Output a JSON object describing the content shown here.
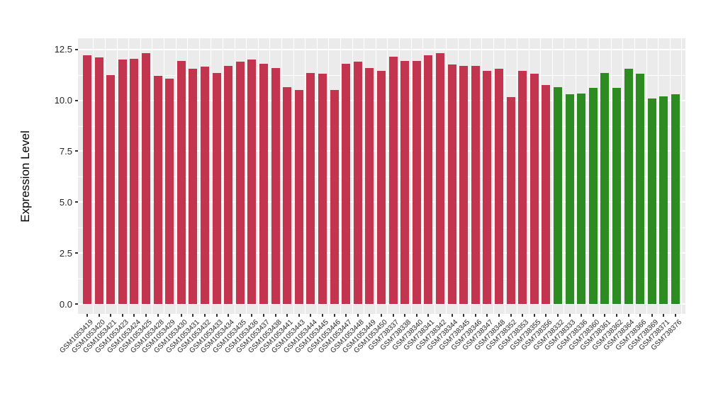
{
  "figure": {
    "background": "#FFFFFF",
    "panel_background": "#EBEBEB",
    "gridline_color": "#FFFFFF",
    "tick_mark_color": "#333333",
    "axis_text_color": "#262626"
  },
  "y_axis": {
    "title": "Expression Level",
    "tick_labels": [
      "0.0",
      "2.5",
      "5.0",
      "7.5",
      "10.0",
      "12.5"
    ],
    "tick_values": [
      0,
      2.5,
      5,
      7.5,
      10,
      12.5
    ],
    "minor_gridline_values": [
      1.25,
      3.75,
      6.25,
      8.75,
      11.25
    ]
  },
  "chart_data": {
    "type": "bar",
    "title": "",
    "xlabel": "",
    "ylabel": "Expression Level",
    "ylim": [
      0,
      13.05
    ],
    "grid": true,
    "legend": false,
    "group_colors": {
      "red": "#C3344F",
      "green": "#2E8B22"
    },
    "items": [
      {
        "label": "GSM1053419",
        "value": 12.2,
        "group": "red"
      },
      {
        "label": "GSM1053420",
        "value": 12.1,
        "group": "red"
      },
      {
        "label": "GSM1053421",
        "value": 11.25,
        "group": "red"
      },
      {
        "label": "GSM1053423",
        "value": 12.0,
        "group": "red"
      },
      {
        "label": "GSM1053424",
        "value": 12.05,
        "group": "red"
      },
      {
        "label": "GSM1053425",
        "value": 12.3,
        "group": "red"
      },
      {
        "label": "GSM1053428",
        "value": 11.2,
        "group": "red"
      },
      {
        "label": "GSM1053429",
        "value": 11.05,
        "group": "red"
      },
      {
        "label": "GSM1053430",
        "value": 11.95,
        "group": "red"
      },
      {
        "label": "GSM1053431",
        "value": 11.55,
        "group": "red"
      },
      {
        "label": "GSM1053432",
        "value": 11.65,
        "group": "red"
      },
      {
        "label": "GSM1053433",
        "value": 11.35,
        "group": "red"
      },
      {
        "label": "GSM1053434",
        "value": 11.7,
        "group": "red"
      },
      {
        "label": "GSM1053435",
        "value": 11.9,
        "group": "red"
      },
      {
        "label": "GSM1053436",
        "value": 12.0,
        "group": "red"
      },
      {
        "label": "GSM1053437",
        "value": 11.8,
        "group": "red"
      },
      {
        "label": "GSM1053438",
        "value": 11.6,
        "group": "red"
      },
      {
        "label": "GSM1053441",
        "value": 10.65,
        "group": "red"
      },
      {
        "label": "GSM1053443",
        "value": 10.5,
        "group": "red"
      },
      {
        "label": "GSM1053444",
        "value": 11.35,
        "group": "red"
      },
      {
        "label": "GSM1053445",
        "value": 11.3,
        "group": "red"
      },
      {
        "label": "GSM1053446",
        "value": 10.5,
        "group": "red"
      },
      {
        "label": "GSM1053447",
        "value": 11.8,
        "group": "red"
      },
      {
        "label": "GSM1053448",
        "value": 11.9,
        "group": "red"
      },
      {
        "label": "GSM1053449",
        "value": 11.6,
        "group": "red"
      },
      {
        "label": "GSM1053450",
        "value": 11.45,
        "group": "red"
      },
      {
        "label": "GSM738337",
        "value": 12.15,
        "group": "red"
      },
      {
        "label": "GSM738338",
        "value": 11.95,
        "group": "red"
      },
      {
        "label": "GSM738340",
        "value": 11.95,
        "group": "red"
      },
      {
        "label": "GSM738341",
        "value": 12.2,
        "group": "red"
      },
      {
        "label": "GSM738342",
        "value": 12.3,
        "group": "red"
      },
      {
        "label": "GSM738344",
        "value": 11.75,
        "group": "red"
      },
      {
        "label": "GSM738345",
        "value": 11.7,
        "group": "red"
      },
      {
        "label": "GSM738346",
        "value": 11.7,
        "group": "red"
      },
      {
        "label": "GSM738347",
        "value": 11.45,
        "group": "red"
      },
      {
        "label": "GSM738348",
        "value": 11.55,
        "group": "red"
      },
      {
        "label": "GSM738352",
        "value": 10.15,
        "group": "red"
      },
      {
        "label": "GSM738353",
        "value": 11.45,
        "group": "red"
      },
      {
        "label": "GSM738355",
        "value": 11.3,
        "group": "red"
      },
      {
        "label": "GSM738356",
        "value": 10.75,
        "group": "red"
      },
      {
        "label": "GSM738332",
        "value": 10.65,
        "group": "green"
      },
      {
        "label": "GSM738333",
        "value": 10.3,
        "group": "green"
      },
      {
        "label": "GSM738336",
        "value": 10.35,
        "group": "green"
      },
      {
        "label": "GSM738360",
        "value": 10.6,
        "group": "green"
      },
      {
        "label": "GSM738361",
        "value": 11.35,
        "group": "green"
      },
      {
        "label": "GSM738362",
        "value": 10.6,
        "group": "green"
      },
      {
        "label": "GSM738364",
        "value": 11.55,
        "group": "green"
      },
      {
        "label": "GSM738366",
        "value": 11.3,
        "group": "green"
      },
      {
        "label": "GSM738369",
        "value": 10.1,
        "group": "green"
      },
      {
        "label": "GSM738371",
        "value": 10.2,
        "group": "green"
      },
      {
        "label": "GSM738376",
        "value": 10.3,
        "group": "green"
      }
    ]
  }
}
